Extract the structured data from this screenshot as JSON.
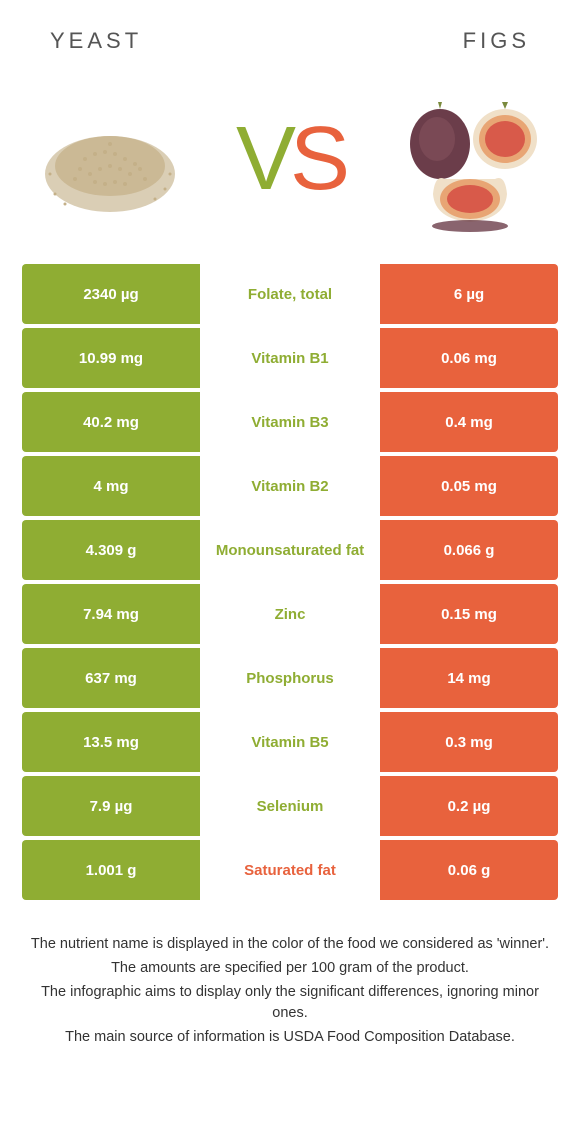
{
  "header": {
    "left": "YEAST",
    "right": "FIGS"
  },
  "vs": {
    "v": "V",
    "s": "S"
  },
  "colors": {
    "green": "#8fad33",
    "orange": "#e8623d",
    "white": "#ffffff",
    "text": "#555555"
  },
  "yeast_svg": {
    "pile": "#d4c5a8",
    "grain": "#c4b088"
  },
  "fig_svg": {
    "skin": "#6b3d4a",
    "skin_light": "#8a5560",
    "flesh": "#e8a574",
    "seeds": "#d85a4a",
    "stem": "#7a8a3d",
    "rind": "#f0e0c8"
  },
  "rows": [
    {
      "left": "2340 µg",
      "mid": "Folate, total",
      "right": "6 µg",
      "winner": "left"
    },
    {
      "left": "10.99 mg",
      "mid": "Vitamin B1",
      "right": "0.06 mg",
      "winner": "left"
    },
    {
      "left": "40.2 mg",
      "mid": "Vitamin B3",
      "right": "0.4 mg",
      "winner": "left"
    },
    {
      "left": "4 mg",
      "mid": "Vitamin B2",
      "right": "0.05 mg",
      "winner": "left"
    },
    {
      "left": "4.309 g",
      "mid": "Monounsaturated fat",
      "right": "0.066 g",
      "winner": "left"
    },
    {
      "left": "7.94 mg",
      "mid": "Zinc",
      "right": "0.15 mg",
      "winner": "left"
    },
    {
      "left": "637 mg",
      "mid": "Phosphorus",
      "right": "14 mg",
      "winner": "left"
    },
    {
      "left": "13.5 mg",
      "mid": "Vitamin B5",
      "right": "0.3 mg",
      "winner": "left"
    },
    {
      "left": "7.9 µg",
      "mid": "Selenium",
      "right": "0.2 µg",
      "winner": "left"
    },
    {
      "left": "1.001 g",
      "mid": "Saturated fat",
      "right": "0.06 g",
      "winner": "right"
    }
  ],
  "footer": {
    "line1": "The nutrient name is displayed in the color of the food we considered as 'winner'.",
    "line2": "The amounts are specified per 100 gram of the product.",
    "line3": "The infographic aims to display only the significant differences, ignoring minor ones.",
    "line4": "The main source of information is USDA Food Composition Database."
  }
}
